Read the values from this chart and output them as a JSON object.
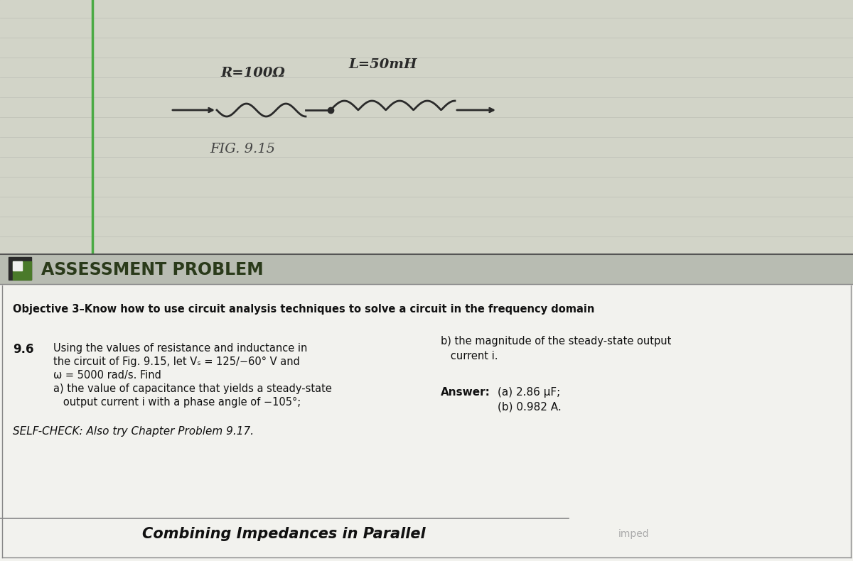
{
  "bg_top_color": "#cccdc4",
  "notebook_paper_color": "#d2d4c8",
  "green_line_color": "#4aaa44",
  "circuit_label_R": "R=100Ω",
  "circuit_label_L": "L=50mH",
  "fig_label": "FIG. 9.15",
  "assessment_header": "ASSESSMENT PROBLEM",
  "assessment_header_color": "#3a5a28",
  "assessment_bar_color": "#b0b4a8",
  "green_sq_color": "#4a7a2a",
  "white_sq_color": "#f0f0ee",
  "content_bg": "#f2f2ee",
  "objective_text": "Objective 3–Know how to use circuit analysis techniques to solve a circuit in the frequency domain",
  "problem_number": "9.6",
  "problem_text_line1": "Using the values of resistance and inductance in",
  "problem_text_line2": "the circuit of Fig. 9.15, let Vₛ = 125/−60° V and",
  "problem_text_line3": "ω = 5000 rad/s. Find",
  "problem_text_line4": "a) the value of capacitance that yields a steady-state",
  "problem_text_line5": "   output current i with a phase angle of −105°;",
  "problem_text_b": "b) the magnitude of the steady-state output\n   current i.",
  "answer_label": "Answer:",
  "answer_a": "(a) 2.86 μF;",
  "answer_b": "(b) 0.982 A.",
  "selfcheck_text": "SELF-CHECK: Also try Chapter Problem 9.17.",
  "combining_text": "Combining Impedances in Parallel",
  "imped_text": "imped",
  "bottom_dark_color": "#888888",
  "line_color": "#888888"
}
